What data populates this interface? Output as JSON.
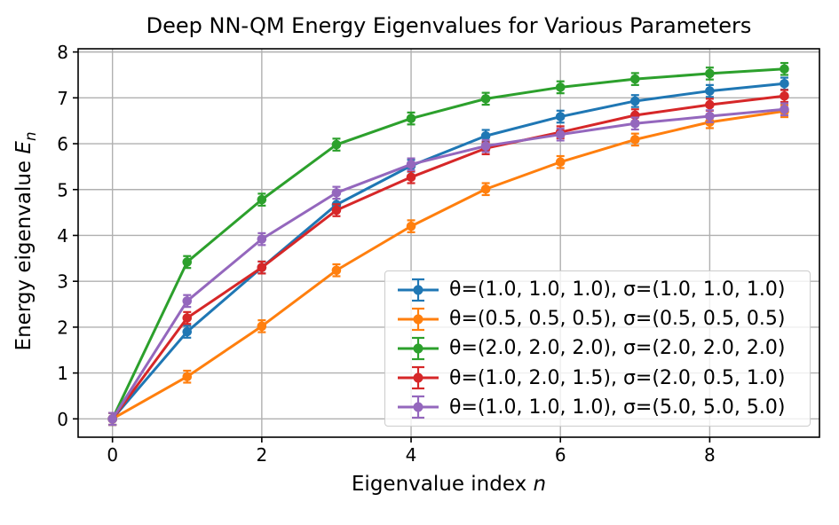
{
  "chart_data": {
    "type": "line",
    "title": "Deep NN-QM Energy Eigenvalues for Various Parameters",
    "xlabel": {
      "text": "Eigenvalue index ",
      "variable": "n"
    },
    "ylabel": {
      "text": "Energy eigenvalue ",
      "variable": "E",
      "subscript": "n"
    },
    "x": [
      0,
      1,
      2,
      3,
      4,
      5,
      6,
      7,
      8,
      9
    ],
    "xticks": [
      0,
      2,
      4,
      6,
      8
    ],
    "yticks": [
      0,
      1,
      2,
      3,
      4,
      5,
      6,
      7,
      8
    ],
    "xlim": [
      -0.46,
      9.47
    ],
    "ylim": [
      -0.4,
      8.07
    ],
    "grid": true,
    "grid_color": "#b0b0b0",
    "axis_color": "#000000",
    "background": "#ffffff",
    "legend_location": "lower right",
    "marker": "circle",
    "yerr": 0.13,
    "series": [
      {
        "label": "θ=(1.0, 1.0, 1.0), σ=(1.0, 1.0, 1.0)",
        "color": "#1f77b4",
        "values": [
          0.0,
          1.9,
          3.3,
          4.67,
          5.52,
          6.17,
          6.59,
          6.93,
          7.15,
          7.31
        ]
      },
      {
        "label": "θ=(0.5, 0.5, 0.5), σ=(0.5, 0.5, 0.5)",
        "color": "#ff7f0e",
        "values": [
          0.0,
          0.92,
          2.02,
          3.24,
          4.2,
          5.01,
          5.6,
          6.09,
          6.47,
          6.71
        ]
      },
      {
        "label": "θ=(2.0, 2.0, 2.0), σ=(2.0, 2.0, 2.0)",
        "color": "#2ca02c",
        "values": [
          0.0,
          3.42,
          4.78,
          5.98,
          6.55,
          6.98,
          7.23,
          7.41,
          7.53,
          7.63
        ]
      },
      {
        "label": "θ=(1.0, 2.0, 1.5), σ=(2.0, 0.5, 1.0)",
        "color": "#d62728",
        "values": [
          0.0,
          2.2,
          3.3,
          4.55,
          5.27,
          5.9,
          6.25,
          6.62,
          6.85,
          7.04
        ]
      },
      {
        "label": "θ=(1.0, 1.0, 1.0), σ=(5.0, 5.0, 5.0)",
        "color": "#9467bd",
        "values": [
          0.0,
          2.57,
          3.92,
          4.93,
          5.55,
          5.95,
          6.2,
          6.44,
          6.6,
          6.75
        ]
      }
    ]
  }
}
